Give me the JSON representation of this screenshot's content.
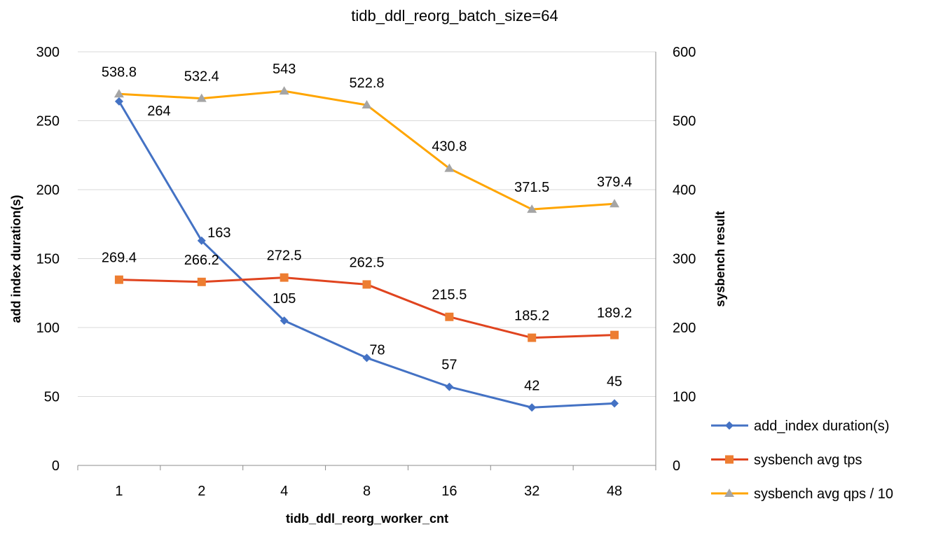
{
  "chart_data": {
    "type": "line",
    "title": "tidb_ddl_reorg_batch_size=64",
    "xlabel": "tidb_ddl_reorg_worker_cnt",
    "ylabel": "add index duration(s)",
    "y2label": "sysbench result",
    "categories": [
      "1",
      "2",
      "4",
      "8",
      "16",
      "32",
      "48"
    ],
    "ylim": [
      0,
      300
    ],
    "yticks": [
      0,
      50,
      100,
      150,
      200,
      250,
      300
    ],
    "y2lim": [
      0,
      600
    ],
    "y2ticks": [
      0,
      100,
      200,
      300,
      400,
      500,
      600
    ],
    "grid": true,
    "legend_position": "right",
    "series": [
      {
        "name": "add_index duration(s)",
        "axis": "left",
        "values": [
          264,
          163,
          105,
          78,
          57,
          42,
          45
        ],
        "color": "#4472C4",
        "marker": "diamond",
        "marker_color": "#4472C4"
      },
      {
        "name": "sysbench avg tps",
        "axis": "right",
        "values": [
          269.4,
          266.2,
          272.5,
          262.5,
          215.5,
          185.2,
          189.2
        ],
        "color": "#E0441F",
        "marker": "square",
        "marker_color": "#ED7D31"
      },
      {
        "name": "sysbench avg qps / 10",
        "axis": "right",
        "values": [
          538.8,
          532.4,
          543,
          522.8,
          430.8,
          371.5,
          379.4
        ],
        "color": "#FFA500",
        "marker": "triangle",
        "marker_color": "#A5A5A5"
      }
    ]
  }
}
